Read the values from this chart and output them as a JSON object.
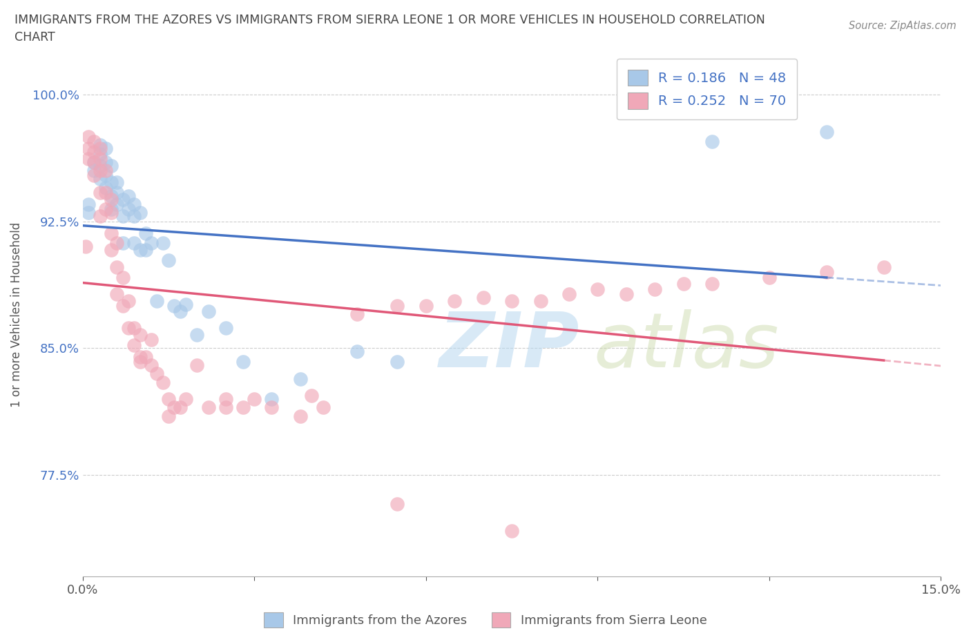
{
  "title_line1": "IMMIGRANTS FROM THE AZORES VS IMMIGRANTS FROM SIERRA LEONE 1 OR MORE VEHICLES IN HOUSEHOLD CORRELATION",
  "title_line2": "CHART",
  "source_text": "Source: ZipAtlas.com",
  "ylabel": "1 or more Vehicles in Household",
  "xmin": 0.0,
  "xmax": 0.15,
  "ymin": 0.715,
  "ymax": 1.025,
  "yticks": [
    0.775,
    0.85,
    0.925,
    1.0
  ],
  "ytick_labels": [
    "77.5%",
    "85.0%",
    "92.5%",
    "100.0%"
  ],
  "xticks": [
    0.0,
    0.03,
    0.06,
    0.09,
    0.12,
    0.15
  ],
  "xtick_labels": [
    "0.0%",
    "",
    "",
    "",
    "",
    "15.0%"
  ],
  "azores_R": 0.186,
  "azores_N": 48,
  "sierra_leone_R": 0.252,
  "sierra_leone_N": 70,
  "azores_color": "#a8c8e8",
  "sierra_leone_color": "#f0a8b8",
  "azores_line_color": "#4472c4",
  "sierra_leone_line_color": "#e05878",
  "watermark_zip": "ZIP",
  "watermark_atlas": "atlas",
  "legend_label_azores": "Immigrants from the Azores",
  "legend_label_sierra": "Immigrants from Sierra Leone",
  "azores_x": [
    0.001,
    0.001,
    0.002,
    0.002,
    0.003,
    0.003,
    0.003,
    0.003,
    0.004,
    0.004,
    0.004,
    0.004,
    0.005,
    0.005,
    0.005,
    0.005,
    0.006,
    0.006,
    0.006,
    0.007,
    0.007,
    0.007,
    0.008,
    0.008,
    0.009,
    0.009,
    0.009,
    0.01,
    0.01,
    0.011,
    0.011,
    0.012,
    0.013,
    0.014,
    0.015,
    0.016,
    0.017,
    0.018,
    0.02,
    0.022,
    0.025,
    0.028,
    0.033,
    0.038,
    0.048,
    0.055,
    0.11,
    0.13
  ],
  "azores_y": [
    0.93,
    0.935,
    0.955,
    0.96,
    0.95,
    0.958,
    0.965,
    0.97,
    0.945,
    0.952,
    0.96,
    0.968,
    0.932,
    0.94,
    0.948,
    0.958,
    0.935,
    0.942,
    0.948,
    0.912,
    0.928,
    0.938,
    0.932,
    0.94,
    0.912,
    0.928,
    0.935,
    0.908,
    0.93,
    0.908,
    0.918,
    0.912,
    0.878,
    0.912,
    0.902,
    0.875,
    0.872,
    0.876,
    0.858,
    0.872,
    0.862,
    0.842,
    0.82,
    0.832,
    0.848,
    0.842,
    0.972,
    0.978
  ],
  "sierra_x": [
    0.0005,
    0.001,
    0.001,
    0.001,
    0.002,
    0.002,
    0.002,
    0.002,
    0.003,
    0.003,
    0.003,
    0.003,
    0.003,
    0.004,
    0.004,
    0.004,
    0.005,
    0.005,
    0.005,
    0.005,
    0.006,
    0.006,
    0.006,
    0.007,
    0.007,
    0.008,
    0.008,
    0.009,
    0.009,
    0.01,
    0.01,
    0.011,
    0.012,
    0.012,
    0.013,
    0.014,
    0.015,
    0.016,
    0.017,
    0.018,
    0.02,
    0.022,
    0.025,
    0.028,
    0.03,
    0.033,
    0.038,
    0.042,
    0.048,
    0.055,
    0.06,
    0.065,
    0.07,
    0.075,
    0.08,
    0.085,
    0.09,
    0.095,
    0.1,
    0.105,
    0.11,
    0.12,
    0.13,
    0.14,
    0.01,
    0.015,
    0.025,
    0.04,
    0.055,
    0.075
  ],
  "sierra_y": [
    0.91,
    0.962,
    0.968,
    0.975,
    0.952,
    0.96,
    0.966,
    0.972,
    0.928,
    0.942,
    0.955,
    0.962,
    0.968,
    0.932,
    0.942,
    0.955,
    0.908,
    0.918,
    0.93,
    0.938,
    0.882,
    0.898,
    0.912,
    0.875,
    0.892,
    0.862,
    0.878,
    0.852,
    0.862,
    0.842,
    0.858,
    0.845,
    0.84,
    0.855,
    0.835,
    0.83,
    0.81,
    0.815,
    0.815,
    0.82,
    0.84,
    0.815,
    0.815,
    0.815,
    0.82,
    0.815,
    0.81,
    0.815,
    0.87,
    0.875,
    0.875,
    0.878,
    0.88,
    0.878,
    0.878,
    0.882,
    0.885,
    0.882,
    0.885,
    0.888,
    0.888,
    0.892,
    0.895,
    0.898,
    0.845,
    0.82,
    0.82,
    0.822,
    0.758,
    0.742
  ]
}
